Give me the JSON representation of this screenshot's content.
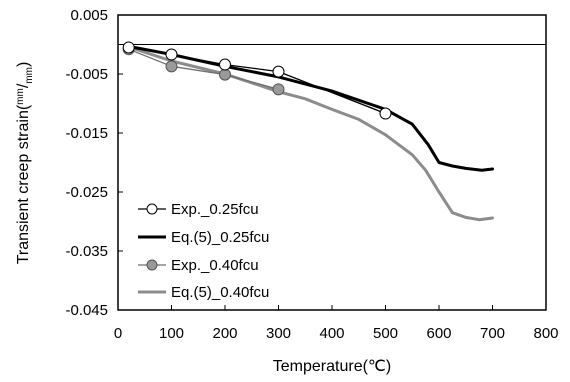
{
  "chart_data": {
    "type": "line",
    "xlabel": "Temperature(℃)",
    "ylabel": "Transient creep strain",
    "ylabel_unit_num": "mm",
    "ylabel_unit_sep": "/",
    "ylabel_unit_den": "mm",
    "xlim": [
      0,
      800
    ],
    "ylim": [
      -0.045,
      0.005
    ],
    "x_ticks": [
      0,
      100,
      200,
      300,
      400,
      500,
      600,
      700,
      800
    ],
    "x_tick_labels": [
      "0",
      "100",
      "200",
      "300",
      "400",
      "500",
      "600",
      "700",
      "800"
    ],
    "y_ticks": [
      0.005,
      -0.005,
      -0.015,
      -0.025,
      -0.035,
      -0.045
    ],
    "y_tick_labels": [
      "0.005",
      "-0.005",
      "-0.015",
      "-0.025",
      "-0.035",
      "-0.045"
    ],
    "grid": false,
    "reference_line_y": 0,
    "legend_position": "lower-left",
    "series": [
      {
        "name": "Exp._0.25fcu",
        "style": "line-markers",
        "color": "#000000",
        "marker_fill": "#ffffff",
        "x": [
          20,
          100,
          200,
          300,
          500
        ],
        "y": [
          -0.0005,
          -0.0017,
          -0.0034,
          -0.0046,
          -0.0117
        ]
      },
      {
        "name": "Eq.(5)_0.25fcu",
        "style": "line",
        "color": "#000000",
        "x": [
          20,
          100,
          200,
          300,
          400,
          500,
          550,
          580,
          600,
          625,
          650,
          680,
          700
        ],
        "y": [
          -0.0003,
          -0.0017,
          -0.0037,
          -0.0055,
          -0.0079,
          -0.011,
          -0.0135,
          -0.017,
          -0.02,
          -0.0206,
          -0.021,
          -0.0213,
          -0.0211
        ]
      },
      {
        "name": "Exp._0.40fcu",
        "style": "line-markers",
        "color": "#6e6e6e",
        "marker_fill": "#9a9a9a",
        "x": [
          20,
          100,
          200,
          300
        ],
        "y": [
          -0.0008,
          -0.0037,
          -0.0051,
          -0.0076
        ]
      },
      {
        "name": "Eq.(5)_0.40fcu",
        "style": "line",
        "color": "#8c8c8c",
        "x": [
          20,
          100,
          200,
          300,
          350,
          400,
          450,
          500,
          550,
          575,
          600,
          625,
          650,
          675,
          700
        ],
        "y": [
          -0.0004,
          -0.0028,
          -0.005,
          -0.008,
          -0.0092,
          -0.011,
          -0.0127,
          -0.0153,
          -0.0187,
          -0.0213,
          -0.025,
          -0.0285,
          -0.0293,
          -0.0297,
          -0.0294
        ]
      }
    ]
  }
}
